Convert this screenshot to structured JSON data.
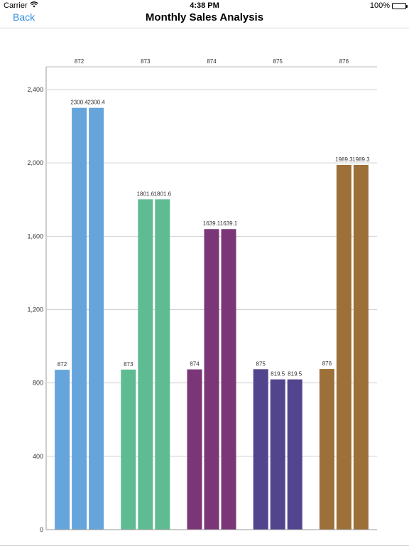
{
  "status_bar": {
    "carrier": "Carrier",
    "time": "4:38 PM",
    "battery": "100%",
    "icons": [
      "wifi-icon",
      "battery-icon"
    ]
  },
  "nav": {
    "back_label": "Back",
    "title": "Monthly Sales Analysis",
    "back_color": "#2f8ee0"
  },
  "chart_data": {
    "type": "bar",
    "title": "",
    "xlabel": "",
    "ylabel": "",
    "ylim": [
      0,
      2400
    ],
    "yticks": [
      0,
      400,
      800,
      1200,
      1600,
      2000,
      2400
    ],
    "ytick_labels": [
      "0",
      "400",
      "800",
      "1,200",
      "1,600",
      "2,000",
      "2,400"
    ],
    "grid": true,
    "categories": [
      "872",
      "873",
      "874",
      "875",
      "876"
    ],
    "groups": [
      {
        "label": "872",
        "color": "#65a5db",
        "values": [
          872,
          2300.4,
          2300.4
        ],
        "value_labels": [
          "872",
          "2300.4",
          "2300.4"
        ]
      },
      {
        "label": "873",
        "color": "#5fbc92",
        "values": [
          873,
          1801.6,
          1801.6
        ],
        "value_labels": [
          "873",
          "1801.6",
          "1801.6"
        ]
      },
      {
        "label": "874",
        "color": "#7b3677",
        "values": [
          874,
          1639.1,
          1639.1
        ],
        "value_labels": [
          "874",
          "1639.1",
          "1639.1"
        ]
      },
      {
        "label": "875",
        "color": "#52458e",
        "values": [
          875,
          819.5,
          819.5
        ],
        "value_labels": [
          "875",
          "819.5",
          "819.5"
        ]
      },
      {
        "label": "876",
        "color": "#9c7038",
        "values": [
          876,
          1989.3,
          1989.3
        ],
        "value_labels": [
          "876",
          "1989.3",
          "1989.3"
        ]
      }
    ]
  }
}
